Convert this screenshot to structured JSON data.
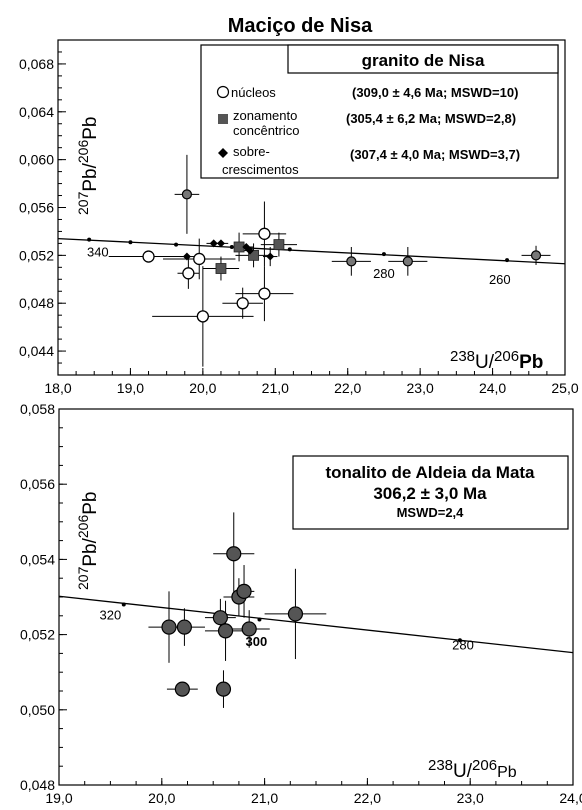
{
  "page_title": "Maciço de Nisa",
  "chart_data": [
    {
      "type": "scatter",
      "subtype": "tera-wasserburg concordia with error crosses",
      "xlim": [
        18.0,
        25.0
      ],
      "ylim": [
        0.042,
        0.07
      ],
      "xticks": [
        "18,0",
        "19,0",
        "20,0",
        "21,0",
        "22,0",
        "23,0",
        "24,0",
        "25,0"
      ],
      "yticks": [
        "0,044",
        "0,048",
        "0,052",
        "0,056",
        "0,060",
        "0,064",
        "0,068"
      ],
      "xtick_values": [
        18,
        19,
        20,
        21,
        22,
        23,
        24,
        25
      ],
      "ytick_values": [
        0.044,
        0.048,
        0.052,
        0.056,
        0.06,
        0.064,
        0.068
      ],
      "xlabel": {
        "sup": "238",
        "main": "U/",
        "sup2": "206",
        "main2": "Pb"
      },
      "ylabel": {
        "sup": "207",
        "main": "Pb/",
        "sup2": "206",
        "main2": "Pb"
      },
      "legend": {
        "title": "granito de Nisa",
        "placement": "top-right",
        "entries": [
          {
            "label": [
              "núcleos"
            ],
            "marker": "circle-open",
            "result": "(309,0 ± 4,6 Ma; MSWD=10)"
          },
          {
            "label": [
              "zonamento",
              "concêntrico"
            ],
            "marker": "square",
            "result": "(305,4 ± 6,2 Ma; MSWD=2,8)"
          },
          {
            "label": [
              "sobre-",
              "crescimentos"
            ],
            "marker": "diamond",
            "result": "(307,4 ± 4,0 Ma; MSWD=3,7)"
          }
        ]
      },
      "concordia": {
        "line": [
          [
            18.0,
            0.0534
          ],
          [
            25.0,
            0.0513
          ]
        ],
        "age_ticks": [
          {
            "x": 18.43,
            "y": 0.05331
          },
          {
            "x": 19.0,
            "y": 0.0531
          },
          {
            "x": 19.63,
            "y": 0.0529
          },
          {
            "x": 20.4,
            "y": 0.0527
          },
          {
            "x": 21.2,
            "y": 0.0525
          },
          {
            "x": 22.5,
            "y": 0.0521
          },
          {
            "x": 24.2,
            "y": 0.0516
          }
        ],
        "labels": [
          {
            "text": "340",
            "x": 18.55,
            "y": 0.0519
          },
          {
            "text": "280",
            "x": 22.5,
            "y": 0.0501
          },
          {
            "text": "260",
            "x": 24.1,
            "y": 0.0496
          }
        ]
      },
      "series": [
        {
          "name": "núcleos",
          "marker": "circle-open",
          "color": "#ffffff",
          "points": [
            {
              "x": 19.25,
              "y": 0.0519,
              "xerr": 0.55,
              "yerr": 0.0
            },
            {
              "x": 19.8,
              "y": 0.0505,
              "xerr": 0.15,
              "yerr": 0.0013
            },
            {
              "x": 19.95,
              "y": 0.0517,
              "xerr": 0.5,
              "yerr": 0.0017
            },
            {
              "x": 20.0,
              "y": 0.0469,
              "xerr": 0.7,
              "yerr": 0.0042
            },
            {
              "x": 20.55,
              "y": 0.048,
              "xerr": 0.28,
              "yerr": 0.0013
            },
            {
              "x": 20.85,
              "y": 0.0488,
              "xerr": 0.4,
              "yerr": 0.0023
            },
            {
              "x": 20.85,
              "y": 0.0538,
              "xerr": 0.3,
              "yerr": 0.0027
            }
          ]
        },
        {
          "name": "zonamento concêntrico",
          "marker": "square",
          "color": "#555555",
          "points": [
            {
              "x": 20.25,
              "y": 0.0509,
              "xerr": 0.25,
              "yerr": 0.001
            },
            {
              "x": 20.5,
              "y": 0.0527,
              "xerr": 0.2,
              "yerr": 0.0012
            },
            {
              "x": 20.7,
              "y": 0.052,
              "xerr": 0.25,
              "yerr": 0.001
            },
            {
              "x": 21.05,
              "y": 0.0529,
              "xerr": 0.25,
              "yerr": 0.001
            }
          ]
        },
        {
          "name": "sobre-crescimentos",
          "marker": "diamond",
          "color": "#000000",
          "points": [
            {
              "x": 19.78,
              "y": 0.0519,
              "xerr": 0.1,
              "yerr": 0.0
            },
            {
              "x": 20.15,
              "y": 0.053,
              "xerr": 0.1,
              "yerr": 0.0
            },
            {
              "x": 20.25,
              "y": 0.053,
              "xerr": 0.1,
              "yerr": 0.0
            },
            {
              "x": 20.6,
              "y": 0.0527,
              "xerr": 0.08,
              "yerr": 0.0
            },
            {
              "x": 20.65,
              "y": 0.0524,
              "xerr": 0.08,
              "yerr": 0.0
            },
            {
              "x": 20.93,
              "y": 0.0519,
              "xerr": 0.1,
              "yerr": 0.0008
            }
          ]
        },
        {
          "name": "",
          "marker": "circle",
          "color": "#777777",
          "points": [
            {
              "x": 19.78,
              "y": 0.0571,
              "xerr": 0.17,
              "yerr": 0.0033
            },
            {
              "x": 22.05,
              "y": 0.0515,
              "xerr": 0.27,
              "yerr": 0.0012
            },
            {
              "x": 22.83,
              "y": 0.0515,
              "xerr": 0.27,
              "yerr": 0.0012
            },
            {
              "x": 24.6,
              "y": 0.052,
              "xerr": 0.2,
              "yerr": 0.0008
            }
          ]
        }
      ]
    },
    {
      "type": "scatter",
      "subtype": "tera-wasserburg concordia with error crosses",
      "xlim": [
        19.0,
        24.0
      ],
      "ylim": [
        0.048,
        0.058
      ],
      "xticks": [
        "19,0",
        "20,0",
        "21,0",
        "22,0",
        "23,0",
        "24,0"
      ],
      "yticks": [
        "0,048",
        "0,050",
        "0,052",
        "0,054",
        "0,056",
        "0,058"
      ],
      "xtick_values": [
        19,
        20,
        21,
        22,
        23,
        24
      ],
      "ytick_values": [
        0.048,
        0.05,
        0.052,
        0.054,
        0.056,
        0.058
      ],
      "xlabel": {
        "sup": "238",
        "main": "U/",
        "sup2": "206",
        "main2": "Pb"
      },
      "ylabel": {
        "sup": "207",
        "main": "Pb/",
        "sup2": "206",
        "main2": "Pb"
      },
      "legend": {
        "title": "tonalito de Aldeia da Mata",
        "age": "306,2 ± 3,0 Ma",
        "mswd": "MSWD=2,4",
        "placement": "top-right"
      },
      "concordia": {
        "line": [
          [
            19.0,
            0.05302
          ],
          [
            24.0,
            0.05152
          ]
        ],
        "age_ticks": [
          {
            "x": 19.63,
            "y": 0.0528
          },
          {
            "x": 20.95,
            "y": 0.0524
          },
          {
            "x": 22.9,
            "y": 0.05185
          }
        ],
        "labels": [
          {
            "text": "320",
            "x": 19.5,
            "y": 0.0524
          },
          {
            "text": "300",
            "x": 20.92,
            "y": 0.0517
          },
          {
            "text": "280",
            "x": 22.93,
            "y": 0.0516
          }
        ]
      },
      "series": [
        {
          "name": "",
          "marker": "circle",
          "color": "#555555",
          "points": [
            {
              "x": 20.07,
              "y": 0.0522,
              "xerr": 0.2,
              "yerr": 0.00095
            },
            {
              "x": 20.22,
              "y": 0.0522,
              "xerr": 0.2,
              "yerr": 0.0005
            },
            {
              "x": 20.2,
              "y": 0.05055,
              "xerr": 0.15,
              "yerr": 0.0
            },
            {
              "x": 20.57,
              "y": 0.05245,
              "xerr": 0.15,
              "yerr": 0.0005
            },
            {
              "x": 20.6,
              "y": 0.05055,
              "xerr": 0.0,
              "yerr": 0.0005
            },
            {
              "x": 20.62,
              "y": 0.0521,
              "xerr": 0.2,
              "yerr": 0.0008
            },
            {
              "x": 20.7,
              "y": 0.05415,
              "xerr": 0.2,
              "yerr": 0.0011
            },
            {
              "x": 20.75,
              "y": 0.053,
              "xerr": 0.15,
              "yerr": 0.0005
            },
            {
              "x": 20.8,
              "y": 0.05315,
              "xerr": 0.1,
              "yerr": 0.0007
            },
            {
              "x": 20.85,
              "y": 0.05215,
              "xerr": 0.2,
              "yerr": 0.0005
            },
            {
              "x": 21.3,
              "y": 0.05255,
              "xerr": 0.3,
              "yerr": 0.0012
            }
          ]
        }
      ]
    }
  ]
}
